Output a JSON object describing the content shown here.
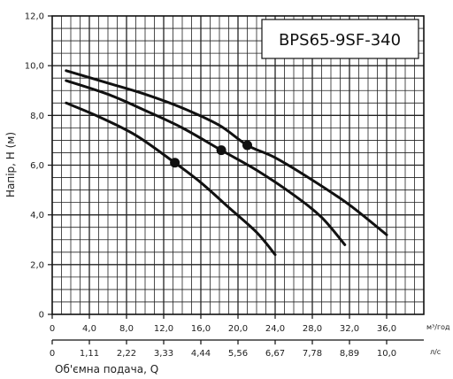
{
  "chart_data": {
    "type": "line",
    "model": "BPS65-9SF-340",
    "ylabel": "Напір, H (м)",
    "xlabel": "Об'ємна подача, Q",
    "x_unit": "м³/год",
    "x2_unit": "л/с",
    "ylim": [
      0,
      12
    ],
    "xlim": [
      0,
      40
    ],
    "y_ticks": [
      "0",
      "2,0",
      "4,0",
      "6,0",
      "8,0",
      "10,0",
      "12,0"
    ],
    "x_ticks": [
      "0",
      "4,0",
      "8,0",
      "12,0",
      "16,0",
      "20,0",
      "24,0",
      "28,0",
      "32,0",
      "36,0"
    ],
    "x2_ticks": [
      "0",
      "1,11",
      "2,22",
      "3,33",
      "4,44",
      "5,56",
      "6,67",
      "7,78",
      "8,89",
      "10,0"
    ],
    "grid": true,
    "series": [
      {
        "points": [
          [
            1.5,
            9.8
          ],
          [
            6,
            9.3
          ],
          [
            10,
            8.85
          ],
          [
            14,
            8.3
          ],
          [
            18,
            7.6
          ],
          [
            21,
            6.8
          ],
          [
            24,
            6.3
          ],
          [
            28,
            5.4
          ],
          [
            32,
            4.4
          ],
          [
            36,
            3.2
          ]
        ],
        "marker": [
          21,
          6.8
        ]
      },
      {
        "points": [
          [
            1.5,
            9.4
          ],
          [
            6,
            8.85
          ],
          [
            10,
            8.2
          ],
          [
            14,
            7.5
          ],
          [
            18.2,
            6.6
          ],
          [
            22,
            5.8
          ],
          [
            26,
            4.8
          ],
          [
            29,
            3.9
          ],
          [
            31.5,
            2.8
          ]
        ],
        "marker": [
          18.2,
          6.6
        ]
      },
      {
        "points": [
          [
            1.5,
            8.5
          ],
          [
            5,
            7.95
          ],
          [
            9,
            7.2
          ],
          [
            13,
            6.15
          ],
          [
            16,
            5.3
          ],
          [
            19,
            4.3
          ],
          [
            22,
            3.3
          ],
          [
            24,
            2.4
          ]
        ],
        "marker": [
          13.2,
          6.1
        ]
      }
    ],
    "colors": {
      "curve": "#111111",
      "grid": "#222222"
    }
  }
}
